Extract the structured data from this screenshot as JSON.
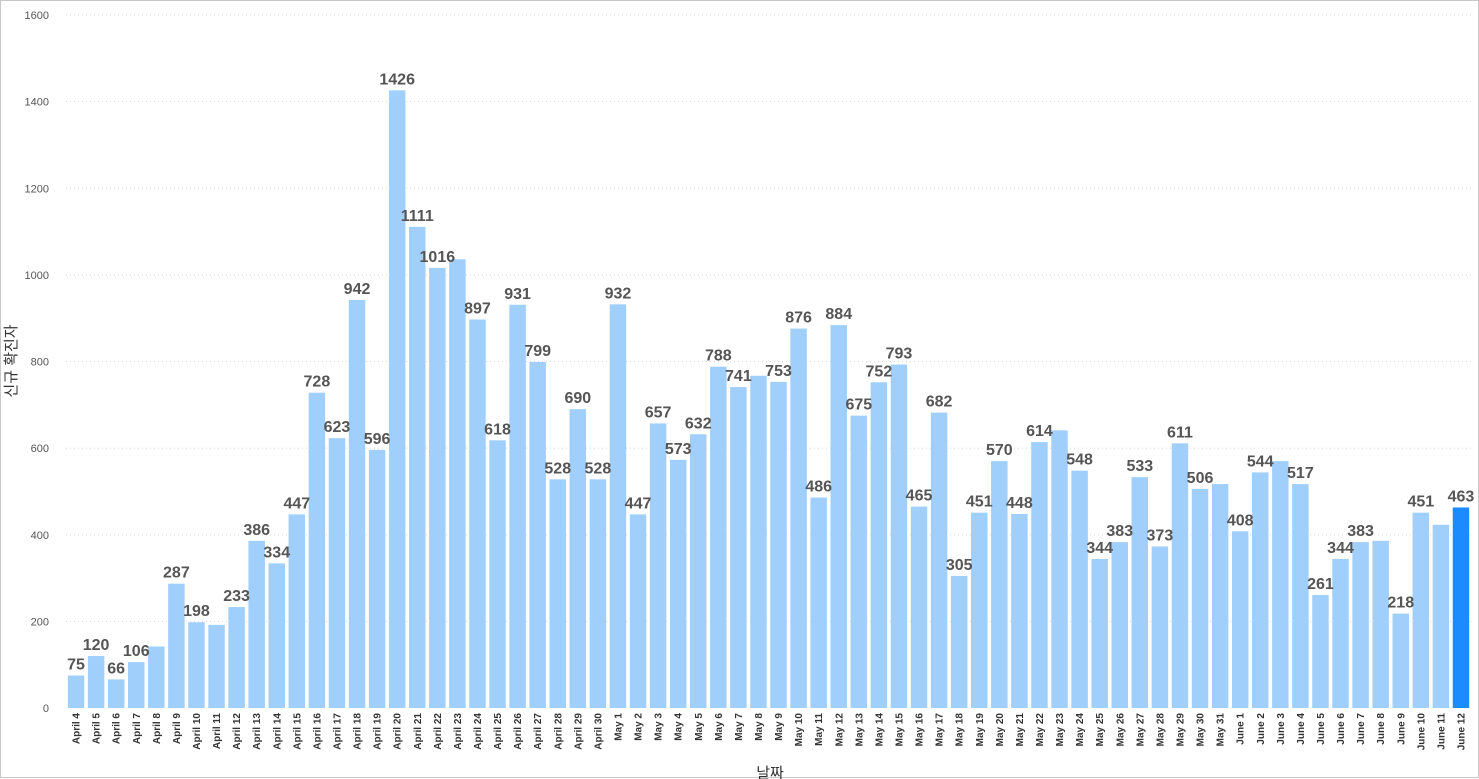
{
  "chart_data": {
    "type": "bar",
    "title": "",
    "xlabel": "날짜",
    "ylabel": "신규 확진자",
    "ylim": [
      0,
      1600
    ],
    "yticks": [
      0,
      200,
      400,
      600,
      800,
      1000,
      1200,
      1400,
      1600
    ],
    "grid": "horizontal dotted",
    "colors": {
      "bar": "#9fcffa",
      "highlight": "#1a8cff",
      "grid": "#d6d6d6",
      "label": "#555555"
    },
    "highlight_index": 69,
    "categories": [
      "April 4",
      "April 5",
      "April 6",
      "April 7",
      "April 8",
      "April 9",
      "April 10",
      "April 11",
      "April 12",
      "April 13",
      "April 14",
      "April 15",
      "April 16",
      "April 17",
      "April 18",
      "April 19",
      "April 20",
      "April 21",
      "April 22",
      "April 23",
      "April 24",
      "April 25",
      "April 26",
      "April 27",
      "April 28",
      "April 29",
      "April 30",
      "May 1",
      "May 2",
      "May 3",
      "May 4",
      "May 5",
      "May 6",
      "May 7",
      "May 8",
      "May 9",
      "May 10",
      "May 11",
      "May 12",
      "May 13",
      "May 14",
      "May 15",
      "May 16",
      "May 17",
      "May 18",
      "May 19",
      "May 20",
      "May 21",
      "May 22",
      "May 23",
      "May 24",
      "May 25",
      "May 26",
      "May 27",
      "May 28",
      "May 29",
      "May 30",
      "May 31",
      "June 1",
      "June 2",
      "June 3",
      "June 4",
      "June 5",
      "June 6",
      "June 7",
      "June 8",
      "June 9",
      "June 10",
      "June 11",
      "June 12"
    ],
    "values": [
      75,
      120,
      66,
      106,
      142,
      287,
      198,
      192,
      233,
      386,
      334,
      447,
      728,
      623,
      942,
      596,
      1426,
      1111,
      1016,
      1036,
      897,
      618,
      931,
      799,
      528,
      690,
      528,
      932,
      447,
      657,
      573,
      632,
      788,
      741,
      767,
      753,
      876,
      486,
      884,
      675,
      752,
      793,
      465,
      682,
      305,
      451,
      570,
      448,
      614,
      641,
      548,
      344,
      383,
      533,
      373,
      611,
      506,
      517,
      408,
      544,
      570,
      517,
      261,
      344,
      383,
      386,
      218,
      451,
      423,
      463
    ],
    "data_labels": [
      "75",
      "120",
      "66",
      "106",
      null,
      "287",
      "198",
      null,
      "233",
      "386",
      "334",
      "447",
      "728",
      "623",
      "942",
      "596",
      "1426",
      "1111",
      "1016",
      null,
      "897",
      "618",
      "931",
      "799",
      "528",
      "690",
      "528",
      "932",
      "447",
      "657",
      "573",
      "632",
      "788",
      "741",
      null,
      "753",
      "876",
      "486",
      "884",
      "675",
      "752",
      "793",
      "465",
      "682",
      "305",
      "451",
      "570",
      "448",
      "614",
      null,
      "548",
      "344",
      "383",
      "533",
      "373",
      "611",
      "506",
      null,
      "408",
      "544",
      null,
      "517",
      "261",
      "344",
      "383",
      null,
      "218",
      "451",
      null,
      "463"
    ]
  }
}
